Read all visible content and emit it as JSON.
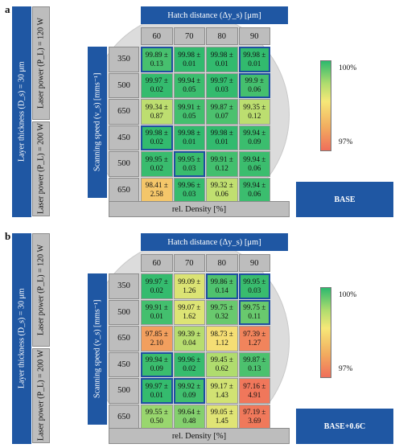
{
  "chart_data": [
    {
      "type": "heatmap",
      "panel_label": "a",
      "variant": "BASE",
      "x_title": "Hatch distance (Δy_s) [μm]",
      "y_title": "Scanning speed (v_s) [mms⁻¹]",
      "bottom_label": "rel. Density [%]",
      "layer_label": "Layer thickness (D_s) = 30 μm",
      "power_groups": [
        "Laser power (P_L) = 120 W",
        "Laser power (P_L) = 200 W"
      ],
      "x": [
        "60",
        "70",
        "80",
        "90"
      ],
      "y": [
        "350",
        "500",
        "650",
        "450",
        "500",
        "650"
      ],
      "colorbar": {
        "max_label": "100%",
        "min_label": "97%",
        "min": 97,
        "max": 100
      },
      "values": [
        [
          99.89,
          99.98,
          99.98,
          99.98
        ],
        [
          99.97,
          99.94,
          99.97,
          99.9
        ],
        [
          99.34,
          99.91,
          99.87,
          99.35
        ],
        [
          99.98,
          99.98,
          99.98,
          99.94
        ],
        [
          99.95,
          99.95,
          99.91,
          99.94
        ],
        [
          98.41,
          99.96,
          99.32,
          99.94
        ]
      ],
      "value_text": [
        [
          "99.89 ±",
          "99.98 ±",
          "99.98 ±",
          "99.98 ±"
        ],
        [
          "99.97 ±",
          "99.94 ±",
          "99.97 ±",
          "99.9 ±"
        ],
        [
          "99.34 ±",
          "99.91 ±",
          "99.87 ±",
          "99.35 ±"
        ],
        [
          "99.98 ±",
          "99.98 ±",
          "99.98 ±",
          "99.94 ±"
        ],
        [
          "99.95 ±",
          "99.95 ±",
          "99.91 ±",
          "99.94 ±"
        ],
        [
          "98.41 ±",
          "99.96 ±",
          "99.32 ±",
          "99.94 ±"
        ]
      ],
      "errors": [
        [
          "0.13",
          "0.01",
          "0.01",
          "0.01"
        ],
        [
          "0.02",
          "0.05",
          "0.03",
          "0.06"
        ],
        [
          "0.87",
          "0.05",
          "0.07",
          "0.12"
        ],
        [
          "0.02",
          "0.01",
          "0.01",
          "0.09"
        ],
        [
          "0.02",
          "0.03",
          "0.12",
          "0.06"
        ],
        [
          "2.58",
          "0.03",
          "0.06",
          "0.06"
        ]
      ],
      "highlighted": [
        [
          0,
          0
        ],
        [
          0,
          3
        ],
        [
          1,
          3
        ],
        [
          3,
          0
        ],
        [
          4,
          1
        ]
      ]
    },
    {
      "type": "heatmap",
      "panel_label": "b",
      "variant": "BASE+0.6C",
      "x_title": "Hatch distance (Δy_s) [μm]",
      "y_title": "Scanning speed (v_s) [mms⁻¹]",
      "bottom_label": "rel. Density [%]",
      "layer_label": "Layer thickness (D_s) = 30 μm",
      "power_groups": [
        "Laser power (P_L) = 120 W",
        "Laser power (P_L) = 200 W"
      ],
      "x": [
        "60",
        "70",
        "80",
        "90"
      ],
      "y": [
        "350",
        "500",
        "650",
        "450",
        "500",
        "650"
      ],
      "colorbar": {
        "max_label": "100%",
        "min_label": "97%",
        "min": 97,
        "max": 100
      },
      "values": [
        [
          99.97,
          99.09,
          99.86,
          99.95
        ],
        [
          99.91,
          99.07,
          99.75,
          99.75
        ],
        [
          97.85,
          99.39,
          98.73,
          97.39
        ],
        [
          99.94,
          99.96,
          99.45,
          99.87
        ],
        [
          99.97,
          99.92,
          99.17,
          97.16
        ],
        [
          99.55,
          99.64,
          99.05,
          97.19
        ]
      ],
      "value_text": [
        [
          "99.97 ±",
          "99.09 ±",
          "99.86 ±",
          "99.95 ±"
        ],
        [
          "99.91 ±",
          "99.07 ±",
          "99.75 ±",
          "99.75 ±"
        ],
        [
          "97.85 ±",
          "99.39 ±",
          "98.73 ±",
          "97.39 ±"
        ],
        [
          "99.94 ±",
          "99.96 ±",
          "99.45 ±",
          "99.87 ±"
        ],
        [
          "99.97 ±",
          "99.92 ±",
          "99.17 ±",
          "97.16 ±"
        ],
        [
          "99.55 ±",
          "99.64 ±",
          "99.05 ±",
          "97.19 ±"
        ]
      ],
      "errors": [
        [
          "0.02",
          "1.26",
          "0.14",
          "0.03"
        ],
        [
          "0.01",
          "1.62",
          "0.32",
          "0.11"
        ],
        [
          "2.10",
          "0.04",
          "1.12",
          "1.27"
        ],
        [
          "0.09",
          "0.02",
          "0.62",
          "0.13"
        ],
        [
          "0.01",
          "0.09",
          "1.43",
          "4.91"
        ],
        [
          "0.50",
          "0.48",
          "1.45",
          "3.69"
        ]
      ],
      "highlighted": [
        [
          0,
          2
        ],
        [
          0,
          3
        ],
        [
          1,
          3
        ],
        [
          3,
          0
        ],
        [
          4,
          0
        ],
        [
          4,
          1
        ]
      ]
    }
  ]
}
